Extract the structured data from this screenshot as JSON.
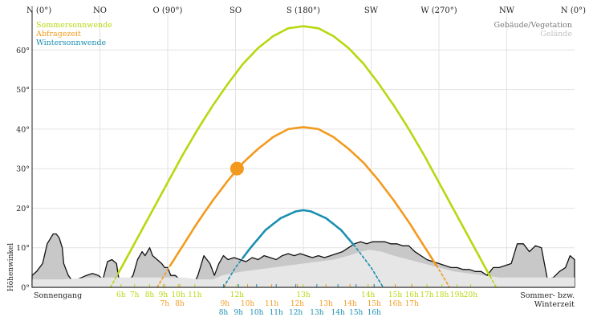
{
  "chart_data": {
    "type": "line",
    "title": "",
    "xlabel": "",
    "ylabel": "Höhenwinkel",
    "xlim": [
      0,
      360
    ],
    "ylim": [
      0,
      70
    ],
    "grid": true,
    "direction_ticks": [
      {
        "label": "N (0°)",
        "value": 0
      },
      {
        "label": "NO",
        "value": 45
      },
      {
        "label": "O (90°)",
        "value": 90
      },
      {
        "label": "SO",
        "value": 135
      },
      {
        "label": "S (180°)",
        "value": 180
      },
      {
        "label": "SW",
        "value": 225
      },
      {
        "label": "W (270°)",
        "value": 270
      },
      {
        "label": "NW",
        "value": 315
      },
      {
        "label": "N (0°)",
        "value": 360
      }
    ],
    "y_ticks": [
      {
        "label": "0°",
        "value": 0
      },
      {
        "label": "10°",
        "value": 10
      },
      {
        "label": "20°",
        "value": 20
      },
      {
        "label": "30°",
        "value": 30
      },
      {
        "label": "40°",
        "value": 40
      },
      {
        "label": "50°",
        "value": 50
      },
      {
        "label": "60°",
        "value": 60
      }
    ],
    "legend_left": [
      {
        "name": "Sommersonnwende",
        "color": "#b5d90f"
      },
      {
        "name": "Abfragezeit",
        "color": "#f39a1e"
      },
      {
        "name": "Wintersonnwende",
        "color": "#1a8fb0"
      }
    ],
    "legend_right": [
      {
        "name": "Gebäude/Vegetation",
        "color": "#7a7a7a"
      },
      {
        "name": "Gelände",
        "color": "#c4c4c4"
      }
    ],
    "series": [
      {
        "name": "Sommersonnwende",
        "color": "#b5d90f",
        "x": [
          52,
          60,
          70,
          80,
          90,
          100,
          110,
          120,
          130,
          140,
          150,
          160,
          170,
          180,
          190,
          200,
          210,
          220,
          230,
          240,
          250,
          260,
          270,
          280,
          290,
          300,
          308
        ],
        "y": [
          0,
          5.5,
          12.5,
          19.5,
          26.5,
          33.5,
          40,
          46,
          51.5,
          56.5,
          60.5,
          63.5,
          65.5,
          66,
          65.5,
          63.5,
          60.5,
          56.5,
          51.5,
          46,
          40,
          33.5,
          26.5,
          19.5,
          12.5,
          5.5,
          0
        ]
      },
      {
        "name": "Abfragezeit",
        "color": "#f39a1e",
        "x": [
          83,
          90,
          100,
          110,
          120,
          130,
          140,
          150,
          160,
          170,
          180,
          190,
          200,
          210,
          220,
          230,
          240,
          250,
          260,
          270,
          277
        ],
        "y": [
          0,
          4.5,
          10.5,
          16.5,
          22,
          27,
          31.5,
          35,
          38,
          40,
          40.5,
          40,
          38,
          35,
          31.5,
          27,
          22,
          16.5,
          10.5,
          4.5,
          0
        ]
      },
      {
        "name": "Wintersonnwende",
        "color": "#1a8fb0",
        "x": [
          127,
          135,
          145,
          155,
          165,
          175,
          180,
          185,
          195,
          205,
          215,
          225,
          233
        ],
        "y": [
          0,
          5,
          10,
          14.5,
          17.5,
          19.2,
          19.5,
          19.2,
          17.5,
          14.5,
          10,
          5,
          0
        ]
      }
    ],
    "current_sun": {
      "x": 136,
      "y": 30,
      "color": "#f39a1e"
    },
    "horizon_buildings": {
      "color": "#c8c8c8",
      "x": [
        0,
        3,
        7,
        10,
        14,
        16,
        18,
        20,
        21,
        24,
        26,
        30,
        33,
        36,
        40,
        44,
        47,
        50,
        53,
        56,
        58,
        63,
        67,
        70,
        73,
        75,
        78,
        80,
        83,
        86,
        88,
        90,
        92,
        95,
        98,
        100,
        102,
        104,
        107,
        110,
        114,
        118,
        121,
        124,
        127,
        130,
        134,
        138,
        142,
        146,
        150,
        154,
        158,
        162,
        166,
        170,
        174,
        178,
        182,
        186,
        190,
        194,
        198,
        202,
        206,
        210,
        214,
        218,
        222,
        226,
        230,
        234,
        238,
        242,
        246,
        250,
        254,
        258,
        262,
        266,
        270,
        274,
        278,
        282,
        286,
        290,
        294,
        298,
        302,
        306,
        310,
        314,
        318,
        322,
        326,
        330,
        334,
        338,
        342,
        346,
        350,
        354,
        357,
        360
      ],
      "y": [
        3,
        4,
        6,
        11,
        13.5,
        13.5,
        12.5,
        10,
        6,
        3,
        2,
        2,
        2.5,
        3,
        3.5,
        3,
        2,
        6.5,
        7,
        6,
        1,
        1,
        3,
        7,
        9,
        8,
        10,
        8,
        7,
        6,
        5,
        5,
        3,
        3,
        2,
        1,
        0.5,
        1,
        0.5,
        3,
        8,
        6,
        3,
        6,
        8,
        7,
        7.5,
        7,
        6.5,
        7.5,
        7,
        8,
        7.5,
        7,
        8,
        8.5,
        8,
        8.5,
        8,
        7.5,
        8,
        7.5,
        8,
        8.5,
        9,
        10,
        11,
        11.5,
        11,
        11.5,
        11.5,
        11.5,
        11,
        11,
        10.5,
        10.5,
        9,
        8,
        7,
        6.5,
        6,
        5.5,
        5,
        5,
        4.5,
        4.5,
        4,
        4,
        3,
        5,
        5,
        5.5,
        6,
        11,
        11,
        9,
        10.5,
        10,
        2,
        2.5,
        4,
        5,
        8,
        7
      ]
    },
    "horizon_terrain": {
      "color": "#e6e6e6",
      "x": [
        0,
        20,
        40,
        60,
        80,
        100,
        110,
        120,
        126,
        132,
        140,
        150,
        160,
        170,
        180,
        190,
        200,
        210,
        218,
        224,
        232,
        240,
        250,
        260,
        270,
        280,
        290,
        300,
        310,
        320,
        330,
        340,
        350,
        360
      ],
      "y": [
        2,
        2,
        2.5,
        2.5,
        2.5,
        2.5,
        2,
        2,
        3,
        3.5,
        4,
        4.5,
        5,
        5.5,
        6,
        6.5,
        7,
        8,
        9,
        9.5,
        9,
        8,
        7,
        6,
        5,
        4,
        3.5,
        3,
        2.5,
        2.5,
        2.5,
        2.5,
        2.5,
        2.5
      ]
    },
    "hour_marks": [
      {
        "label": "6h",
        "x": 59,
        "row": 1,
        "color": "#b5d90f"
      },
      {
        "label": "7h",
        "x": 68,
        "row": 1,
        "color": "#b5d90f"
      },
      {
        "label": "8h",
        "x": 78,
        "row": 1,
        "color": "#b5d90f"
      },
      {
        "label": "9h",
        "x": 87,
        "row": 1,
        "color": "#b5d90f"
      },
      {
        "label": "10h",
        "x": 97,
        "row": 1,
        "color": "#b5d90f"
      },
      {
        "label": "11h",
        "x": 108,
        "row": 1,
        "color": "#b5d90f"
      },
      {
        "label": "12h",
        "x": 136,
        "row": 1,
        "color": "#b5d90f"
      },
      {
        "label": "13h",
        "x": 180,
        "row": 1,
        "color": "#b5d90f"
      },
      {
        "label": "14h",
        "x": 223,
        "row": 1,
        "color": "#b5d90f"
      },
      {
        "label": "15h",
        "x": 241,
        "row": 1,
        "color": "#b5d90f"
      },
      {
        "label": "16h",
        "x": 252,
        "row": 1,
        "color": "#b5d90f"
      },
      {
        "label": "17h",
        "x": 262,
        "row": 1,
        "color": "#b5d90f"
      },
      {
        "label": "18h",
        "x": 272,
        "row": 1,
        "color": "#b5d90f"
      },
      {
        "label": "19h",
        "x": 282,
        "row": 1,
        "color": "#b5d90f"
      },
      {
        "label": "20h",
        "x": 291,
        "row": 1,
        "color": "#b5d90f"
      },
      {
        "label": "7h",
        "x": 88,
        "row": 2,
        "color": "#f39a1e"
      },
      {
        "label": "8h",
        "x": 98,
        "row": 2,
        "color": "#f39a1e"
      },
      {
        "label": "9h",
        "x": 128,
        "row": 2,
        "color": "#f39a1e"
      },
      {
        "label": "10h",
        "x": 143,
        "row": 2,
        "color": "#f39a1e"
      },
      {
        "label": "11h",
        "x": 159,
        "row": 2,
        "color": "#f39a1e"
      },
      {
        "label": "12h",
        "x": 176,
        "row": 2,
        "color": "#f39a1e"
      },
      {
        "label": "13h",
        "x": 195,
        "row": 2,
        "color": "#f39a1e"
      },
      {
        "label": "14h",
        "x": 211,
        "row": 2,
        "color": "#f39a1e"
      },
      {
        "label": "15h",
        "x": 227,
        "row": 2,
        "color": "#f39a1e"
      },
      {
        "label": "16h",
        "x": 241,
        "row": 2,
        "color": "#f39a1e"
      },
      {
        "label": "17h",
        "x": 252,
        "row": 2,
        "color": "#f39a1e"
      },
      {
        "label": "8h",
        "x": 127,
        "row": 3,
        "color": "#1a8fb0"
      },
      {
        "label": "9h",
        "x": 137,
        "row": 3,
        "color": "#1a8fb0"
      },
      {
        "label": "10h",
        "x": 149,
        "row": 3,
        "color": "#1a8fb0"
      },
      {
        "label": "11h",
        "x": 162,
        "row": 3,
        "color": "#1a8fb0"
      },
      {
        "label": "12h",
        "x": 175,
        "row": 3,
        "color": "#1a8fb0"
      },
      {
        "label": "13h",
        "x": 189,
        "row": 3,
        "color": "#1a8fb0"
      },
      {
        "label": "14h",
        "x": 203,
        "row": 3,
        "color": "#1a8fb0"
      },
      {
        "label": "15h",
        "x": 215,
        "row": 3,
        "color": "#1a8fb0"
      },
      {
        "label": "16h",
        "x": 227,
        "row": 3,
        "color": "#1a8fb0"
      }
    ]
  },
  "labels": {
    "sunrise": "Sonnengang",
    "time_note_line1": "Sommer- bzw.",
    "time_note_line2": "Winterzeit"
  }
}
